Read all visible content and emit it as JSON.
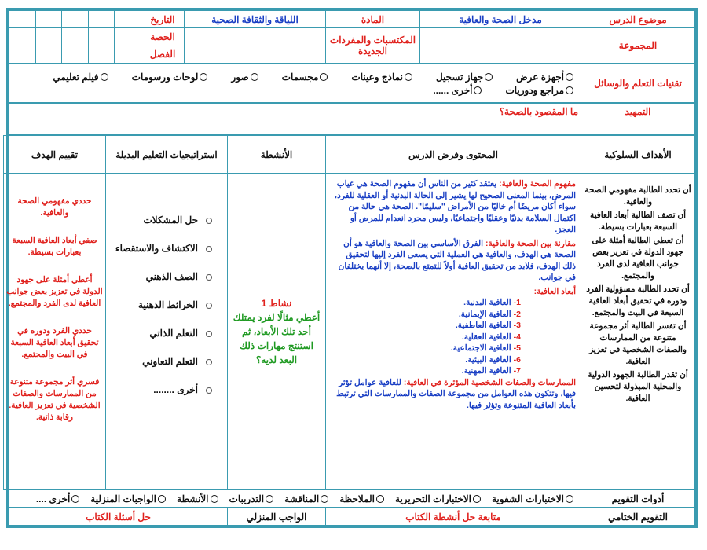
{
  "header": {
    "lesson_topic_label": "موضوع الدرس",
    "lesson_topic": "مدخل الصحة والعافية",
    "subject_label": "المادة",
    "subject": "اللياقة والثقافة الصحية",
    "date_label": "التاريخ",
    "group_label": "المجموعة",
    "vocab_label": "المكتسبات والمفردات الجديدة",
    "period_label": "الحصة",
    "class_label": "الفصل"
  },
  "tools": {
    "label": "تقنيات التعلم والوسائل",
    "options": [
      "أجهزة عرض",
      "جهاز تسجيل",
      "نماذج وعينات",
      "مجسمات",
      "صور",
      "لوحات ورسومات",
      "فيلم تعليمي",
      "مراجع ودوريات",
      "أخرى ......"
    ]
  },
  "intro": {
    "label": "التمهيد",
    "question": "ما المقصود بالصحة؟"
  },
  "columns": [
    "الأهداف السلوكية",
    "المحتوى وفرض الدرس",
    "الأنشطة",
    "استراتيجيات التعليم البديلة",
    "تقييم الهدف"
  ],
  "objectives": [
    "أن تحدد الطالبة مفهومي الصحة والعافية.",
    "أن تصف الطالبة أبعاد العافية السبعة بعبارات بسيطة.",
    "أن تعطي الطالبة أمثلة على جهود الدولة في تعزيز بعض جوانب العافية لدى الفرد والمجتمع.",
    "أن تحدد الطالبة مسؤولية الفرد ودوره في تحقيق أبعاد العافية السبعة في البيت والمجتمع.",
    "أن تفسر الطالبة أثر مجموعة متنوعة من الممارسات والصفات الشخصية في تعزيز العافية.",
    "أن تقدر الطالبة الجهود الدولية والمحلية المبذولة لتحسين العافية."
  ],
  "content": {
    "concept": {
      "heading": "مفهوم الصحة والعافية:",
      "text": "يعتقد كثير من الناس أن مفهوم الصحة هي غياب المرض، بينما المعنى الصحيح لها يشير إلى الحالة البدنية أو العقلية للفرد، سواء أكان مريضًا أم خاليًا من الأمراض \"سليمًا\". الصحة هي حالة من اكتمال السلامة بدنيًا وعقليًا واجتماعيًا، وليس مجرد انعدام للمرض أو العجز."
    },
    "comparison": {
      "heading": "مقارنة بين الصحة والعافية:",
      "text": "الفرق الأساسي بين الصحة والعافية هو أن الصحة هي الهدف، والعافية هي العملية التي يسعى الفرد إليها لتحقيق ذلك الهدف، فلابد من تحقيق العافية أولاً للتمتع بالصحة، إلا أنهما يختلفان في جوانب."
    },
    "dimensions": {
      "heading": "أبعاد العافية:",
      "items": [
        {
          "number": "1-",
          "text": "العافية البدنية."
        },
        {
          "number": "2-",
          "text": "العافية الإيمانية."
        },
        {
          "number": "3-",
          "text": "العافية العاطفية."
        },
        {
          "number": "4-",
          "text": "العافية العقلية."
        },
        {
          "number": "5-",
          "text": "العافية الاجتماعية."
        },
        {
          "number": "6-",
          "text": "العافية البيئية."
        },
        {
          "number": "7-",
          "text": "العافية المهنية."
        }
      ]
    },
    "practices": {
      "heading": "الممارسات والصفات الشخصية المؤثرة في العافية:",
      "text": "للعافية عوامل تؤثر فيها، وتتكون هذه العوامل من مجموعة الصفات والممارسات التي ترتبط بأبعاد العافية المتنوعة وتؤثر فيها."
    }
  },
  "activity": {
    "title": "نشاط 1",
    "text": "أعطي مثالًا لفرد يمتلك أحد تلك الأبعاد، ثم استنتج مهارات ذلك البعد لديه؟"
  },
  "strategies": [
    "حل المشكلات",
    "الاكتشاف والاستقصاء",
    "الصف الذهني",
    "الخرائط الذهنية",
    "التعلم الذاتي",
    "التعلم التعاوني",
    "أخرى ........"
  ],
  "evaluation": [
    "حددي مفهومي الصحة والعافية.",
    "صفي أبعاد العافية السبعة بعبارات بسيطة.",
    "أعطي أمثلة على جهود الدولة في تعزيز بعض جوانب العافية لدى الفرد والمجتمع.",
    "حددي الفرد ودوره في تحقيق أبعاد العافية السبعة في البيت والمجتمع.",
    "فسري أثر مجموعة متنوعة من الممارسات والصفات الشخصية في تعزيز العافية. رقابة ذاتية."
  ],
  "assessment": {
    "label": "أدوات التقويم",
    "options": [
      "الاختبارات الشفوية",
      "الاختبارات التحريرية",
      "الملاحظة",
      "المناقشة",
      "التدريبات",
      "الأنشطة",
      "الواجبات المنزلية",
      "أخرى ...."
    ]
  },
  "closing": {
    "label": "التقويم الختامي",
    "followup": "متابعة حل أنشطة الكتاب",
    "homework_label": "الواجب المنزلي",
    "homework": "حل أسئلة الكتاب"
  }
}
